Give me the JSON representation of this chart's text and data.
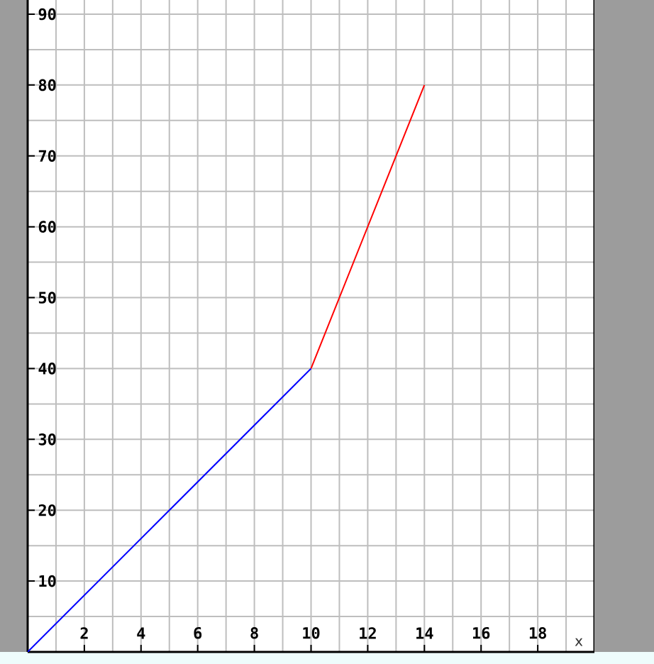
{
  "chart_data": {
    "type": "line",
    "xlabel": "x",
    "series": [
      {
        "color": "#0000ff",
        "x": [
          0,
          10
        ],
        "values": [
          0,
          40
        ]
      },
      {
        "color": "#ff0000",
        "x": [
          10,
          14
        ],
        "values": [
          40,
          80
        ]
      }
    ],
    "xlim": [
      0,
      20
    ],
    "ylim": [
      0,
      92
    ],
    "xticks": [
      2,
      4,
      6,
      8,
      10,
      12,
      14,
      16,
      18
    ],
    "yticks": [
      10,
      20,
      30,
      40,
      50,
      60,
      70,
      80,
      90
    ],
    "grid": true,
    "line_style": "solid"
  }
}
